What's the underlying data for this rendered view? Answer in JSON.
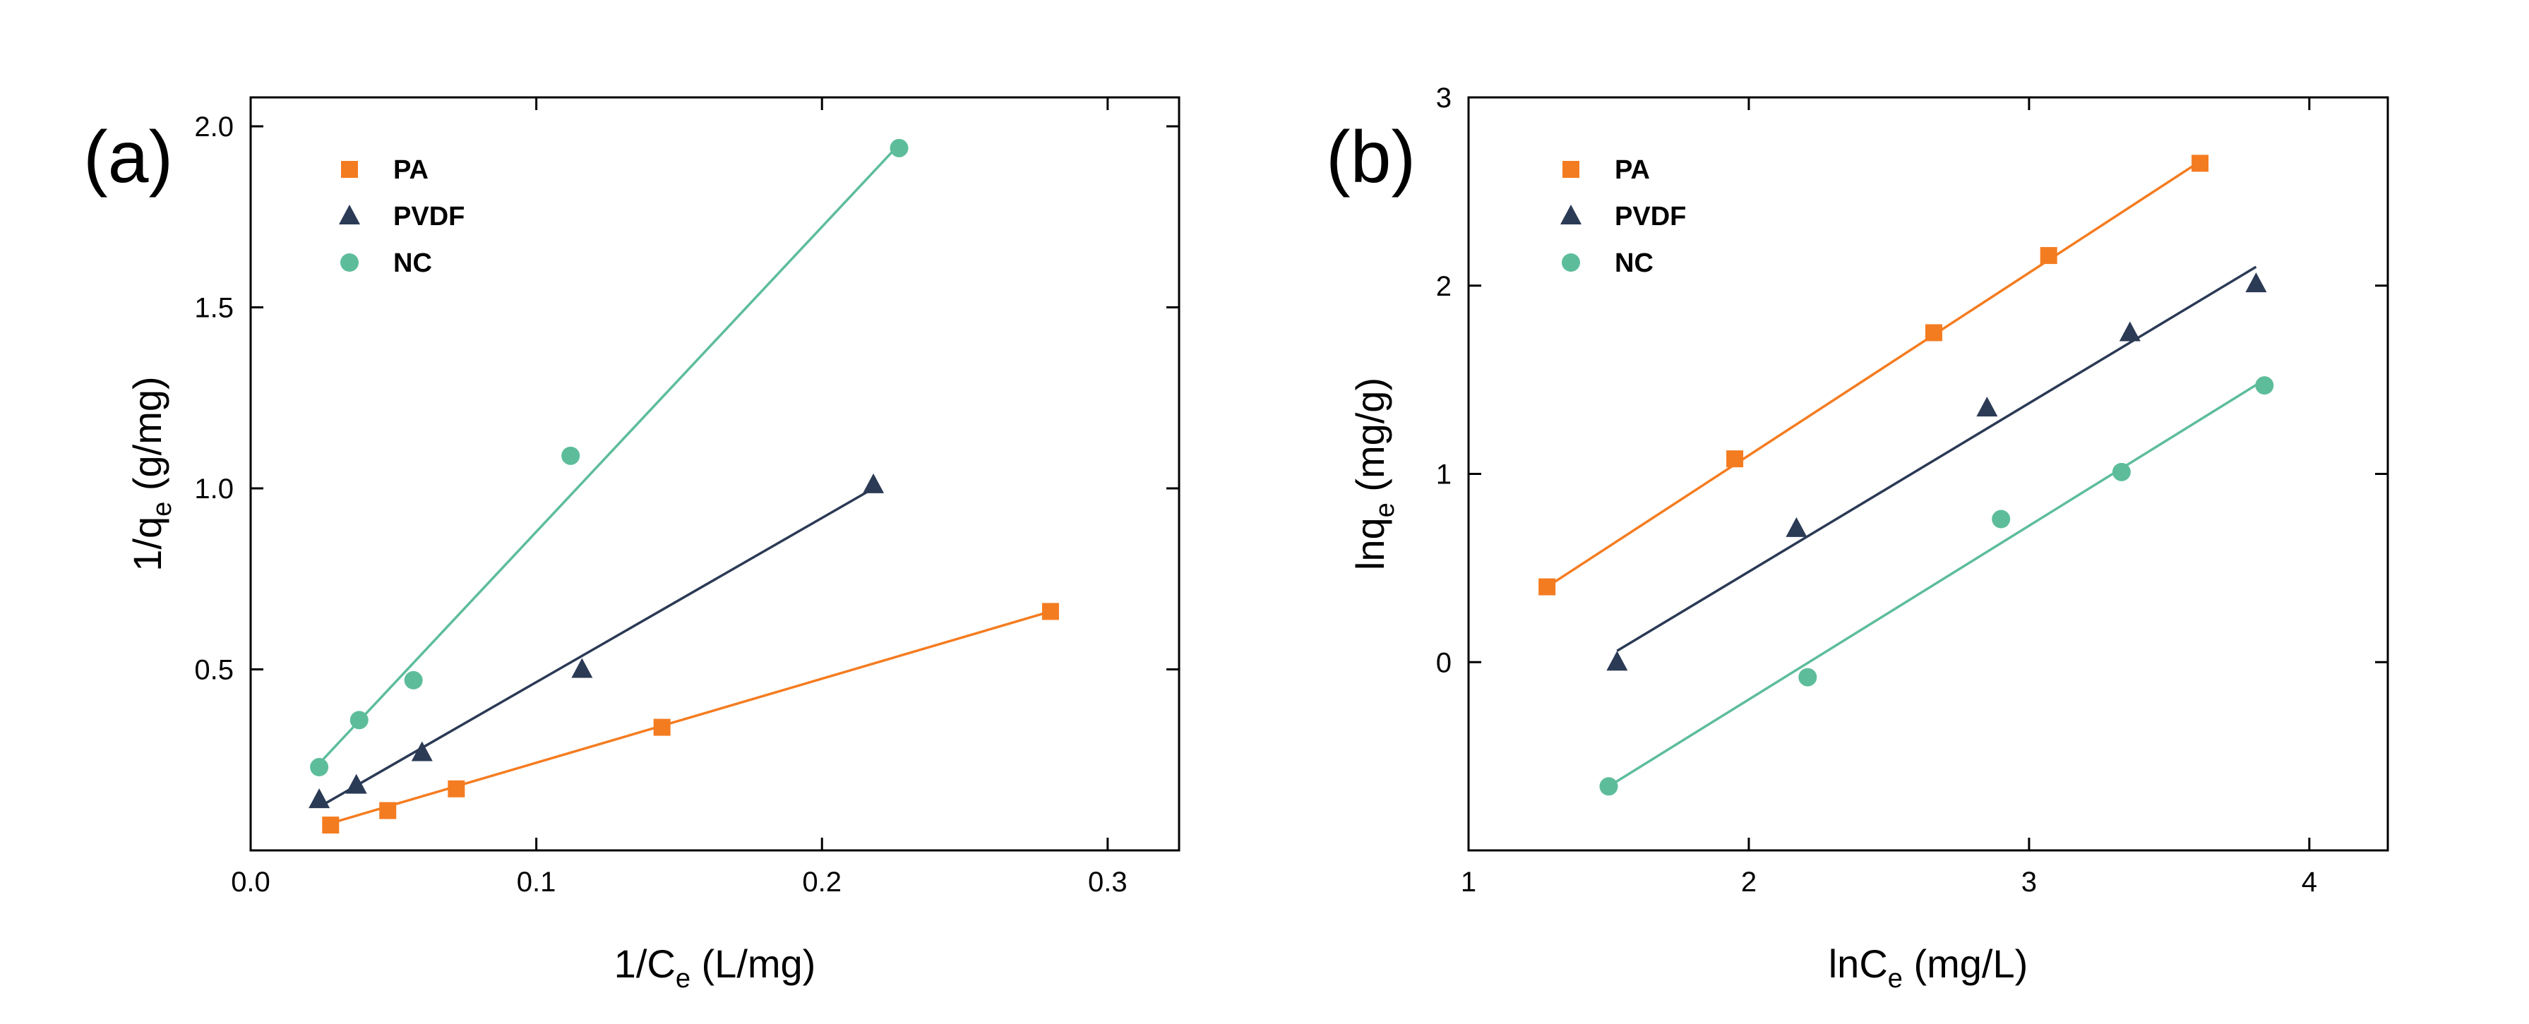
{
  "chart_data": [
    {
      "type": "scatter",
      "panel_label": "(a)",
      "xlabel": {
        "main": "1/C",
        "sub": "e",
        "after": " (L/mg)"
      },
      "ylabel": {
        "main": "1/q",
        "sub": "e",
        "after": " (g/mg)"
      },
      "xlim": [
        0.0,
        0.325
      ],
      "ylim": [
        0.0,
        2.08
      ],
      "xticks": [
        0.0,
        0.1,
        0.2,
        0.3
      ],
      "xtick_labels": [
        "0.0",
        "0.1",
        "0.2",
        "0.3"
      ],
      "yticks": [
        0.5,
        1.0,
        1.5,
        2.0
      ],
      "ytick_labels": [
        "0.5",
        "1.0",
        "1.5",
        "2.0"
      ],
      "grid": false,
      "legend_position": "top-left",
      "series": [
        {
          "name": "PA",
          "color": "#F47C20",
          "marker": "square",
          "x": [
            0.028,
            0.048,
            0.072,
            0.144,
            0.28
          ],
          "y": [
            0.07,
            0.11,
            0.17,
            0.34,
            0.66
          ],
          "fit": [
            [
              0.028,
              0.075
            ],
            [
              0.28,
              0.66
            ]
          ]
        },
        {
          "name": "PVDF",
          "color": "#2B3A55",
          "marker": "triangle",
          "x": [
            0.024,
            0.037,
            0.06,
            0.116,
            0.218
          ],
          "y": [
            0.14,
            0.18,
            0.27,
            0.5,
            1.01
          ],
          "fit": [
            [
              0.024,
              0.12
            ],
            [
              0.218,
              1.0
            ]
          ]
        },
        {
          "name": "NC",
          "color": "#5DBD9B",
          "marker": "circle",
          "x": [
            0.024,
            0.038,
            0.057,
            0.112,
            0.227
          ],
          "y": [
            0.23,
            0.36,
            0.47,
            1.09,
            1.94
          ],
          "fit": [
            [
              0.024,
              0.24
            ],
            [
              0.227,
              1.95
            ]
          ]
        }
      ]
    },
    {
      "type": "scatter",
      "panel_label": "(b)",
      "xlabel": {
        "main": "lnC",
        "sub": "e",
        "after": " (mg/L)"
      },
      "ylabel": {
        "main": "lnq",
        "sub": "e",
        "after": " (mg/g)"
      },
      "xlim": [
        1.0,
        4.28
      ],
      "ylim": [
        -1.0,
        3.0
      ],
      "xticks": [
        1,
        2,
        3,
        4
      ],
      "xtick_labels": [
        "1",
        "2",
        "3",
        "4"
      ],
      "yticks": [
        0,
        1,
        2,
        3
      ],
      "ytick_labels": [
        "0",
        "1",
        "2",
        "3"
      ],
      "grid": false,
      "legend_position": "top-left",
      "series": [
        {
          "name": "PA",
          "color": "#F47C20",
          "marker": "square",
          "x": [
            1.28,
            1.95,
            2.66,
            3.07,
            3.61
          ],
          "y": [
            0.4,
            1.08,
            1.75,
            2.16,
            2.65
          ],
          "fit": [
            [
              1.28,
              0.4
            ],
            [
              3.61,
              2.66
            ]
          ]
        },
        {
          "name": "PVDF",
          "color": "#2B3A55",
          "marker": "triangle",
          "x": [
            1.53,
            2.17,
            2.85,
            3.36,
            3.81
          ],
          "y": [
            0.0,
            0.71,
            1.35,
            1.75,
            2.01
          ],
          "fit": [
            [
              1.53,
              0.06
            ],
            [
              3.81,
              2.1
            ]
          ]
        },
        {
          "name": "NC",
          "color": "#5DBD9B",
          "marker": "circle",
          "x": [
            1.5,
            2.21,
            2.9,
            3.33,
            3.84
          ],
          "y": [
            -0.66,
            -0.08,
            0.76,
            1.01,
            1.47
          ],
          "fit": [
            [
              1.5,
              -0.66
            ],
            [
              3.84,
              1.5
            ]
          ]
        }
      ]
    }
  ]
}
